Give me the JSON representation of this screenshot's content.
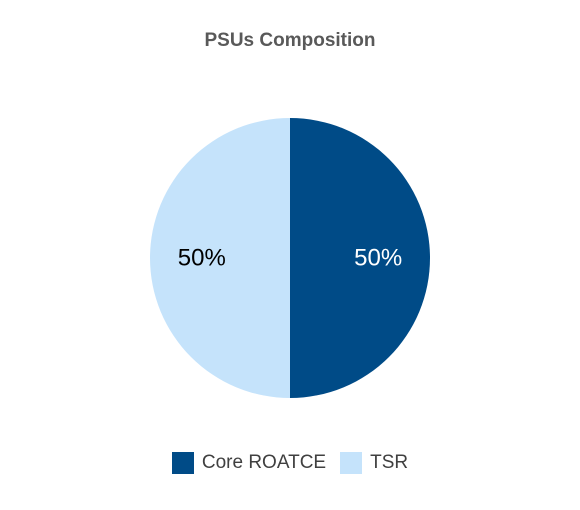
{
  "chart_data": {
    "type": "pie",
    "title": "PSUs Composition",
    "slices": [
      {
        "name": "Core ROATCE",
        "value": 50,
        "label": "50%",
        "color": "#004B87"
      },
      {
        "name": "TSR",
        "value": 50,
        "label": "50%",
        "color": "#C5E3FB"
      }
    ],
    "legend_position": "bottom",
    "data_label_colors": {
      "Core ROATCE": "#ffffff",
      "TSR": "#000000"
    }
  }
}
